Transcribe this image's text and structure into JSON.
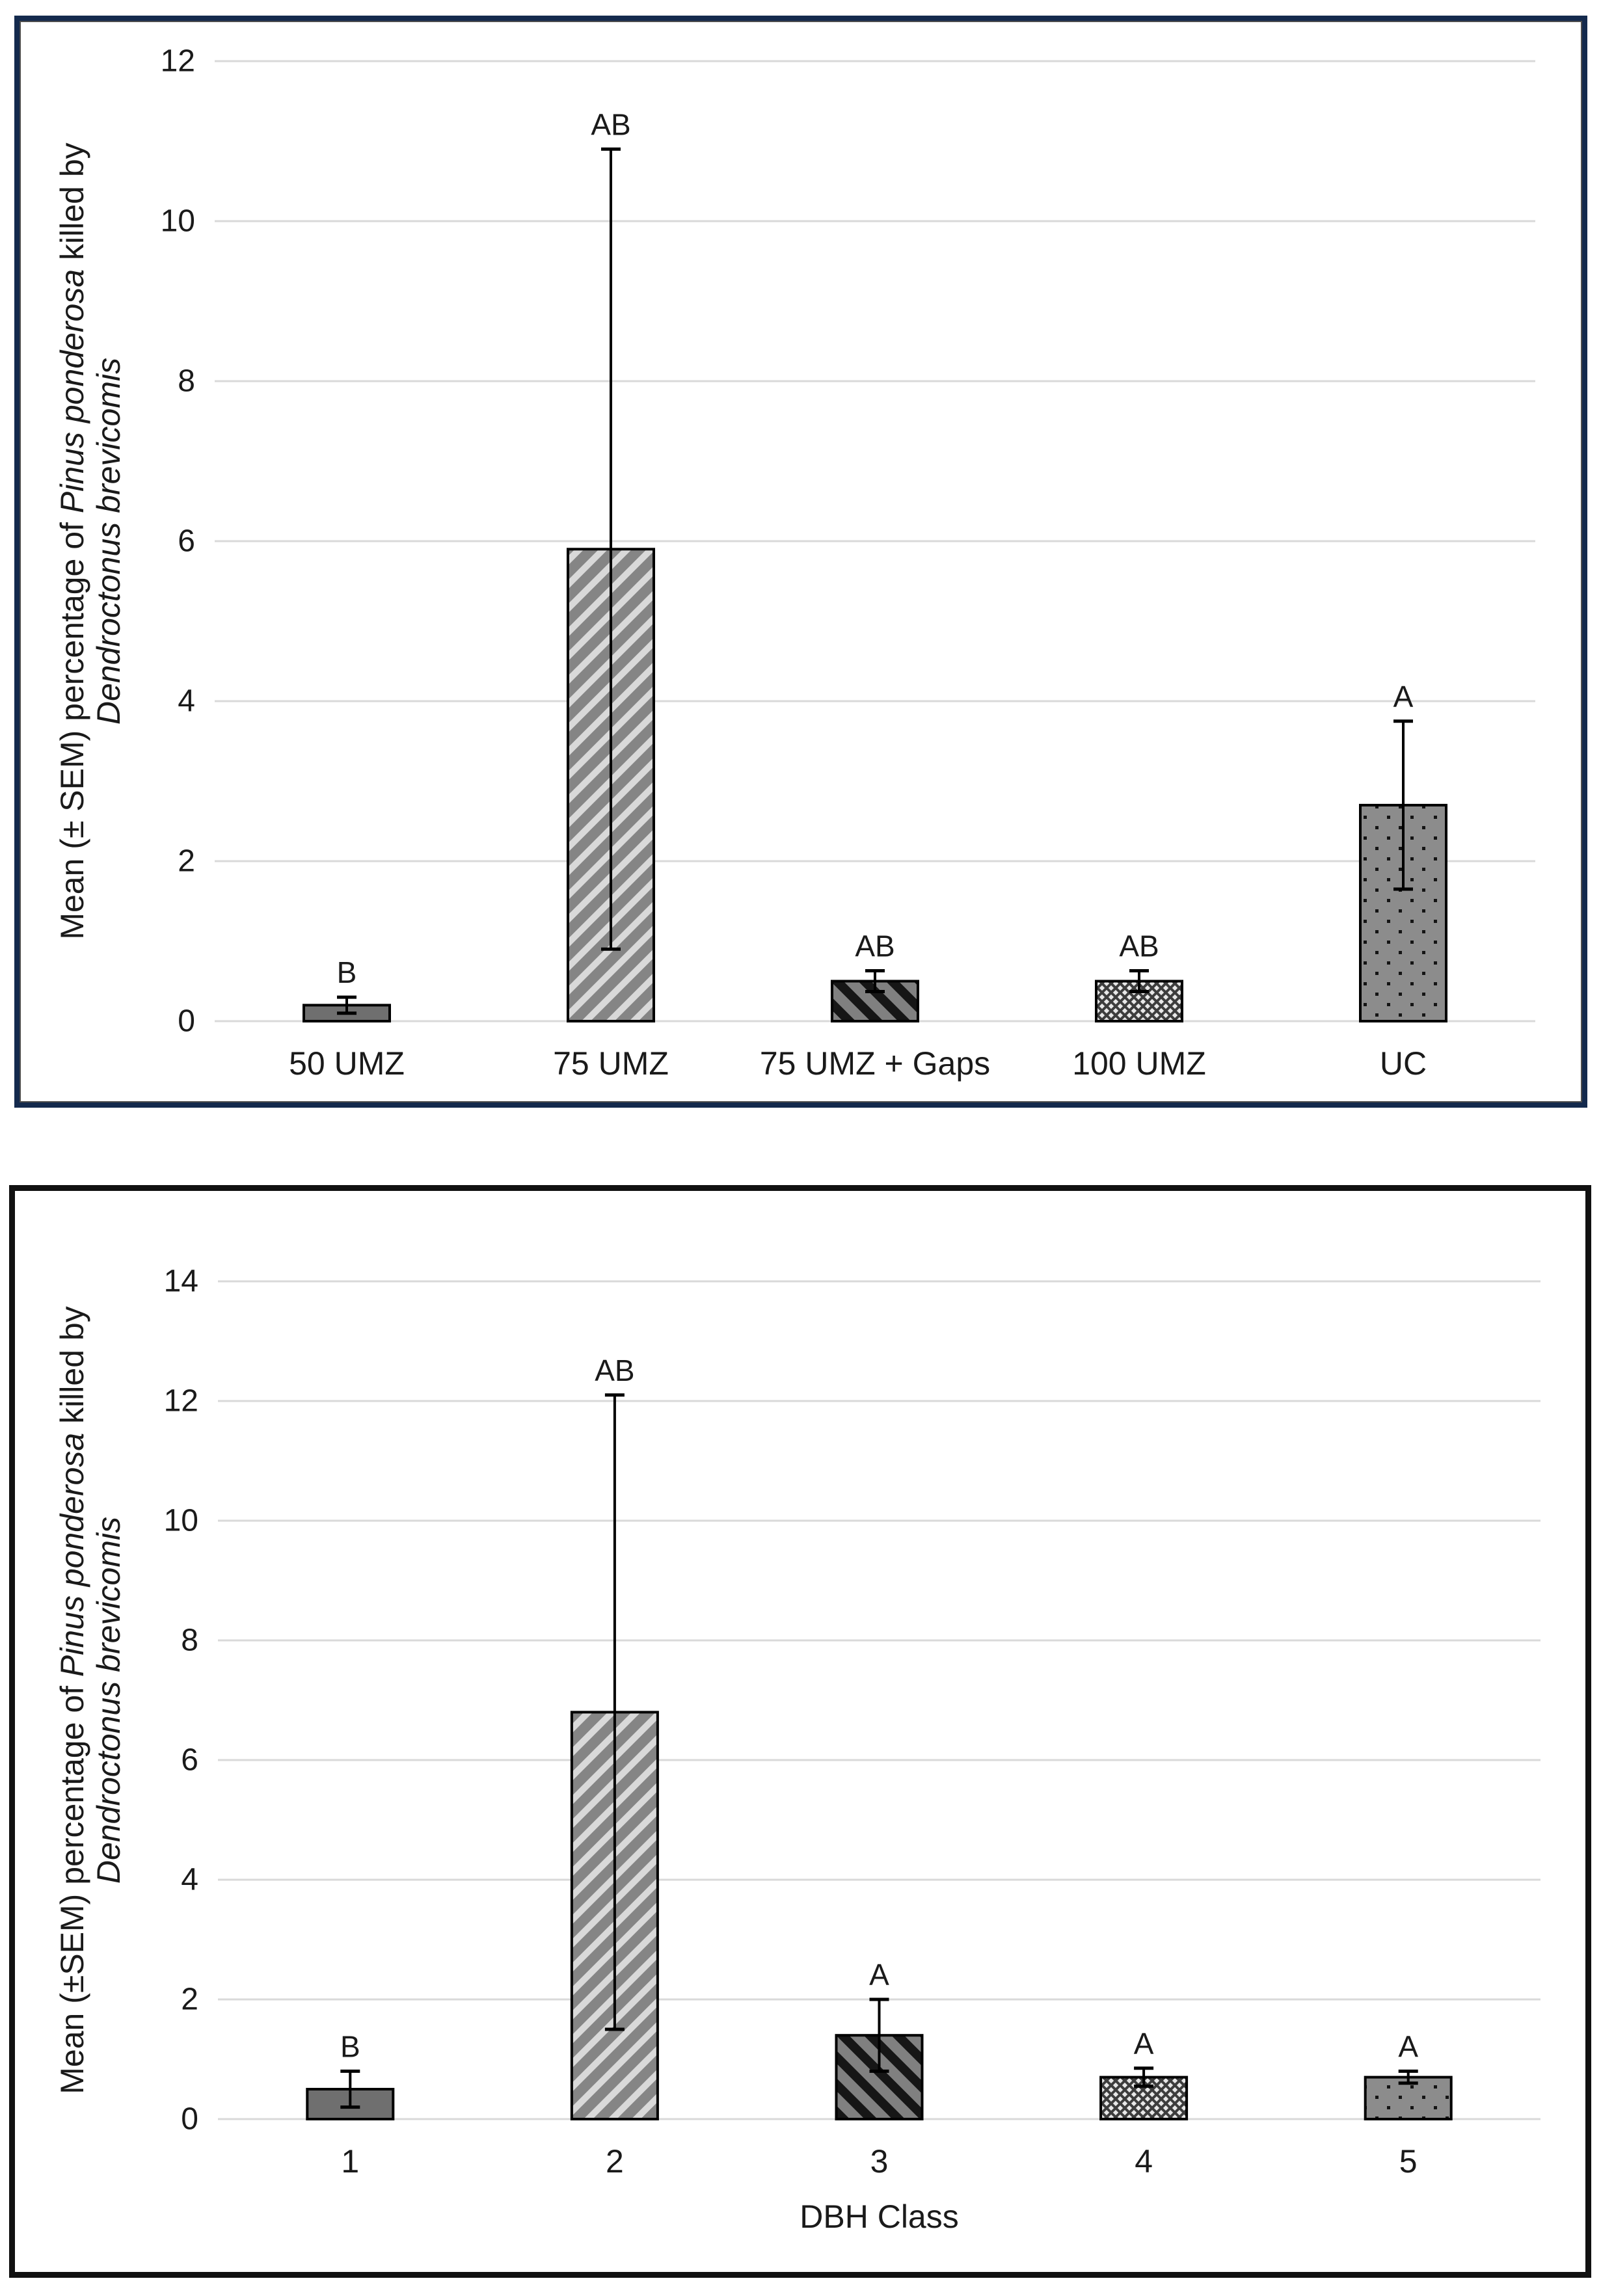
{
  "page": {
    "background": "#ffffff"
  },
  "palette": {
    "frame_navy": "#142a4d",
    "frame_black": "#111111",
    "grid": "#d9d9d9",
    "text": "#1a1a1a",
    "bar_stroke": "#000000",
    "bar_solid": "#6f6f6f",
    "stripe_light_bg": "#858585",
    "stripe_light": "#d9d9d9",
    "stripe_dark_bg": "#808080",
    "stripe_dark": "#161616",
    "weave_bg": "#e8e8e8",
    "weave_line": "#3d3d3d",
    "dots_bg": "#8c8c8c",
    "dot": "#141414"
  },
  "chart_data": [
    {
      "name": "treatment-chart",
      "type": "bar",
      "title": "",
      "categories": [
        "50 UMZ",
        "75 UMZ",
        "75 UMZ + Gaps",
        "100 UMZ",
        "UC"
      ],
      "values": [
        0.2,
        5.9,
        0.5,
        0.5,
        2.7
      ],
      "sem": [
        0.1,
        5.0,
        0.13,
        0.13,
        1.05
      ],
      "sig_letters": [
        "B",
        "AB",
        "AB",
        "AB",
        "A"
      ],
      "patterns": [
        "solid",
        "diag-light",
        "diag-dark",
        "weave",
        "dots"
      ],
      "xlabel": "",
      "ylabel_lines": [
        [
          {
            "text": "Mean (± SEM) percentage of ",
            "italic": false
          },
          {
            "text": "Pinus ponderosa",
            "italic": true
          },
          {
            "text": " killed by",
            "italic": false
          }
        ],
        [
          {
            "text": "Dendroctonus brevicomis",
            "italic": true
          }
        ]
      ],
      "ylim": [
        0,
        12
      ],
      "ytick_step": 2,
      "yticks": [
        "0",
        "2",
        "4",
        "6",
        "8",
        "10",
        "12"
      ],
      "grid": true,
      "legend": null
    },
    {
      "name": "dbh-class-chart",
      "type": "bar",
      "title": "",
      "categories": [
        "1",
        "2",
        "3",
        "4",
        "5"
      ],
      "values": [
        0.5,
        6.8,
        1.4,
        0.7,
        0.7
      ],
      "sem": [
        0.3,
        5.3,
        0.6,
        0.15,
        0.1
      ],
      "sig_letters": [
        "B",
        "AB",
        "A",
        "A",
        "A"
      ],
      "patterns": [
        "solid",
        "diag-light",
        "diag-dark",
        "weave",
        "dots"
      ],
      "xlabel": "DBH Class",
      "ylabel_lines": [
        [
          {
            "text": "Mean (±SEM) percentage of ",
            "italic": false
          },
          {
            "text": "Pinus ponderosa",
            "italic": true
          },
          {
            "text": " killed by",
            "italic": false
          }
        ],
        [
          {
            "text": "Dendroctonus brevicomis",
            "italic": true
          }
        ]
      ],
      "ylim": [
        0,
        14
      ],
      "ytick_step": 2,
      "yticks": [
        "0",
        "2",
        "4",
        "6",
        "8",
        "10",
        "12",
        "14"
      ],
      "grid": true,
      "legend": null
    }
  ]
}
